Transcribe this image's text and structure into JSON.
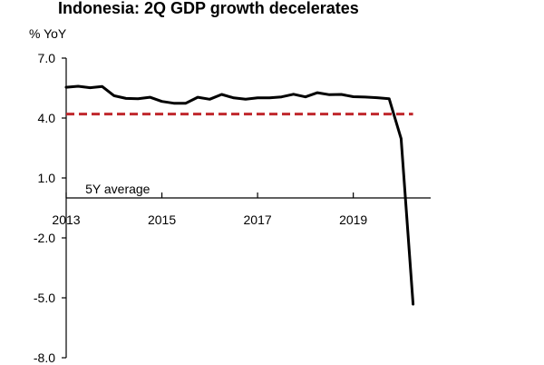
{
  "chart_data": {
    "type": "line",
    "title": "Indonesia: 2Q GDP growth decelerates",
    "ylabel": "% YoY",
    "xlabel": "",
    "ylim": [
      -8.0,
      7.0
    ],
    "yticks": [
      7.0,
      4.0,
      1.0,
      -2.0,
      -5.0,
      -8.0
    ],
    "ytick_labels": [
      "7.0",
      "4.0",
      "1.0",
      "-2.0",
      "-5.0",
      "-8.0"
    ],
    "xticks": [
      2013,
      2015,
      2017,
      2019
    ],
    "xtick_labels": [
      "2013",
      "2015",
      "2017",
      "2019"
    ],
    "xlim": [
      2013.0,
      2020.75
    ],
    "grid": false,
    "series": [
      {
        "color": "#000000",
        "x": [
          2013.0,
          2013.25,
          2013.5,
          2013.75,
          2014.0,
          2014.25,
          2014.5,
          2014.75,
          2015.0,
          2015.25,
          2015.5,
          2015.75,
          2016.0,
          2016.25,
          2016.5,
          2016.75,
          2017.0,
          2017.25,
          2017.5,
          2017.75,
          2018.0,
          2018.25,
          2018.5,
          2018.75,
          2019.0,
          2019.25,
          2019.5,
          2019.75,
          2020.0,
          2020.25
        ],
        "y": [
          5.54,
          5.59,
          5.52,
          5.58,
          5.12,
          4.98,
          4.97,
          5.04,
          4.83,
          4.74,
          4.74,
          5.04,
          4.94,
          5.18,
          5.01,
          4.94,
          5.01,
          5.01,
          5.06,
          5.19,
          5.06,
          5.27,
          5.17,
          5.18,
          5.07,
          5.05,
          5.02,
          4.97,
          2.97,
          -5.32
        ]
      },
      {
        "name": "5Y average",
        "color": "#c0282d",
        "style": "dashed",
        "x": [
          2013.0,
          2020.25
        ],
        "y": [
          4.2,
          4.2
        ]
      }
    ],
    "annotations": [
      {
        "text": "5Y average",
        "x": 2013.4,
        "y": 0.1
      }
    ]
  }
}
